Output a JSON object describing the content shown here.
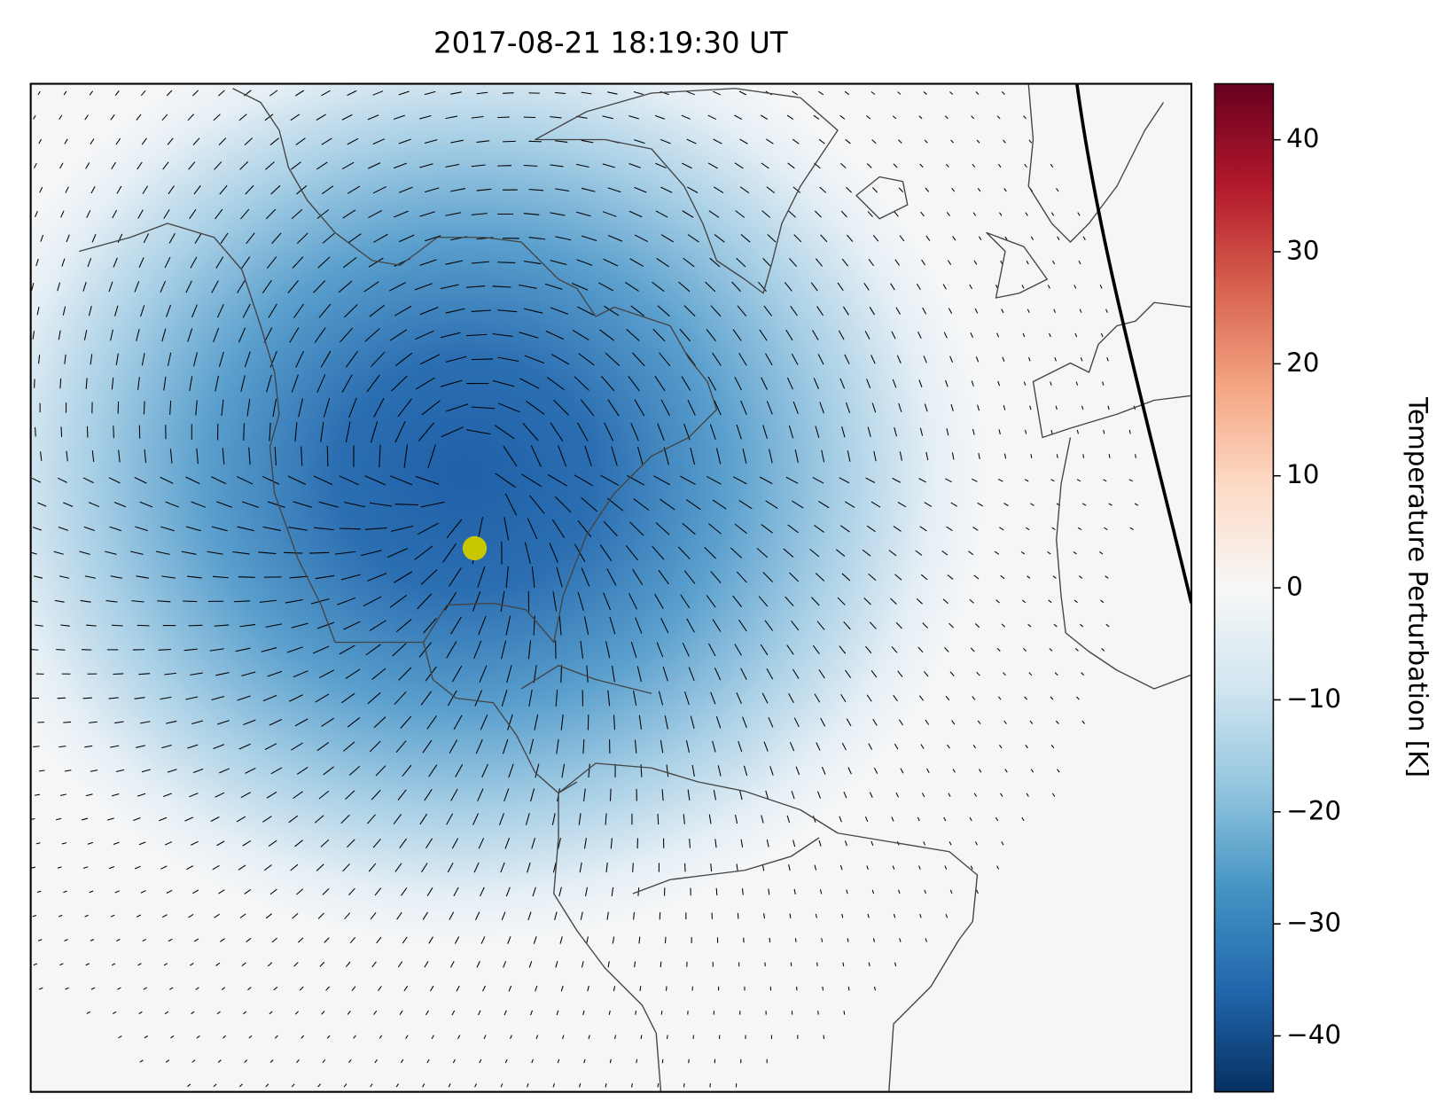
{
  "chart_data": {
    "type": "map",
    "title": "2017-08-21 18:19:30 UT",
    "marker_color": "#c8c800",
    "colorbar": {
      "label": "Temperature Perturbation [K]",
      "lim": [
        -45,
        45
      ],
      "ticks": [
        {
          "value": -40,
          "label": "−40"
        },
        {
          "value": -30,
          "label": "−30"
        },
        {
          "value": -20,
          "label": "−20"
        },
        {
          "value": -10,
          "label": "−10"
        },
        0,
        10,
        20,
        30,
        40
      ],
      "colors": [
        "#053061",
        "#2166ac",
        "#4393c3",
        "#92c5de",
        "#d1e5f0",
        "#f7f7f7",
        "#fddbc7",
        "#f4a582",
        "#d6604d",
        "#b2182b",
        "#67001f"
      ]
    }
  }
}
